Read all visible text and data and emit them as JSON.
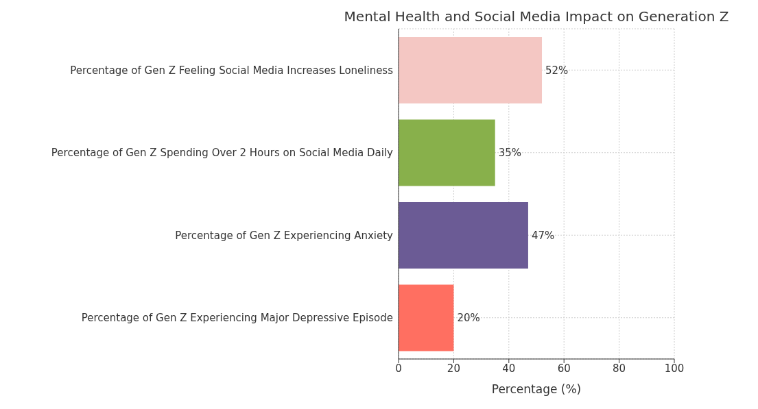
{
  "chart_data": {
    "type": "bar",
    "orientation": "horizontal",
    "title": "Mental Health and Social Media Impact on Generation Z",
    "xlabel": "Percentage (%)",
    "categories": [
      "Percentage of Gen Z Feeling Social Media Increases Loneliness",
      "Percentage of Gen Z Spending Over 2 Hours on Social Media Daily",
      "Percentage of Gen Z Experiencing Anxiety",
      "Percentage of Gen Z Experiencing Major Depressive Episode"
    ],
    "values": [
      52,
      35,
      47,
      20
    ],
    "colors": [
      "#f4c7c3",
      "#88b04b",
      "#6b5b95",
      "#ff6f61"
    ],
    "value_labels": [
      "52%",
      "35%",
      "47%",
      "20%"
    ],
    "xlim": [
      0,
      100
    ],
    "xticks": [
      0,
      20,
      40,
      60,
      80,
      100
    ],
    "grid": true
  }
}
